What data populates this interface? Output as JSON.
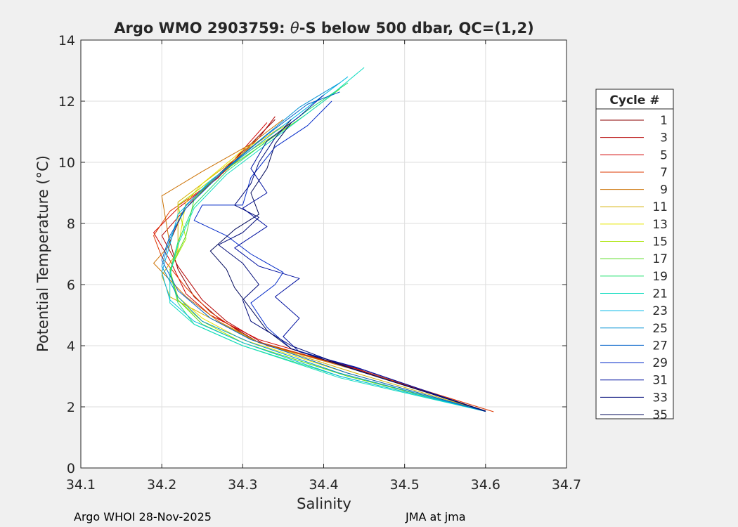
{
  "chart_data": {
    "type": "line",
    "title_prefix": "Argo WMO 2903759: ",
    "title_symbol": "θ",
    "title_suffix": "-S below 500 dbar,  QC=(1,2)",
    "xlabel": "Salinity",
    "ylabel": "Potential Temperature (°C)",
    "xlim": [
      34.1,
      34.7
    ],
    "ylim": [
      0,
      14
    ],
    "xticks": [
      "34.1",
      "34.2",
      "34.3",
      "34.4",
      "34.5",
      "34.6",
      "34.7"
    ],
    "yticks": [
      "0",
      "2",
      "4",
      "6",
      "8",
      "10",
      "12",
      "14"
    ],
    "grid": true,
    "legend": {
      "title": "Cycle #",
      "placement": "right",
      "entries": [
        {
          "label": "1",
          "color": "#8b0000"
        },
        {
          "label": "3",
          "color": "#b40000"
        },
        {
          "label": "5",
          "color": "#d10000"
        },
        {
          "label": "7",
          "color": "#de3800"
        },
        {
          "label": "9",
          "color": "#cc7000"
        },
        {
          "label": "11",
          "color": "#d4b000"
        },
        {
          "label": "13",
          "color": "#e8e600"
        },
        {
          "label": "15",
          "color": "#a8e400"
        },
        {
          "label": "17",
          "color": "#5cdc28"
        },
        {
          "label": "19",
          "color": "#28e070"
        },
        {
          "label": "21",
          "color": "#10dcc0"
        },
        {
          "label": "23",
          "color": "#00b8e6"
        },
        {
          "label": "25",
          "color": "#0090d4"
        },
        {
          "label": "27",
          "color": "#0060c8"
        },
        {
          "label": "29",
          "color": "#0028c8"
        },
        {
          "label": "31",
          "color": "#0010a0"
        },
        {
          "label": "33",
          "color": "#000a78"
        },
        {
          "label": "35",
          "color": "#00085a"
        }
      ]
    },
    "series": [
      {
        "name": "1",
        "points": [
          [
            34.6,
            1.86
          ],
          [
            34.45,
            3.2
          ],
          [
            34.32,
            4.1
          ],
          [
            34.27,
            4.9
          ],
          [
            34.24,
            5.6
          ],
          [
            34.22,
            6.5
          ],
          [
            34.21,
            7.4
          ],
          [
            34.23,
            8.6
          ],
          [
            34.27,
            9.6
          ],
          [
            34.31,
            10.6
          ],
          [
            34.34,
            11.4
          ]
        ]
      },
      {
        "name": "3",
        "points": [
          [
            34.6,
            1.85
          ],
          [
            34.44,
            3.25
          ],
          [
            34.33,
            4.0
          ],
          [
            34.28,
            4.8
          ],
          [
            34.25,
            5.5
          ],
          [
            34.22,
            6.6
          ],
          [
            34.2,
            7.6
          ],
          [
            34.24,
            8.8
          ],
          [
            34.28,
            9.8
          ],
          [
            34.32,
            10.8
          ],
          [
            34.34,
            11.5
          ]
        ]
      },
      {
        "name": "5",
        "points": [
          [
            34.6,
            1.86
          ],
          [
            34.45,
            3.2
          ],
          [
            34.32,
            4.2
          ],
          [
            34.26,
            5.0
          ],
          [
            34.23,
            5.7
          ],
          [
            34.21,
            6.8
          ],
          [
            34.19,
            7.7
          ],
          [
            34.22,
            8.5
          ],
          [
            34.27,
            9.5
          ],
          [
            34.3,
            10.4
          ],
          [
            34.33,
            11.3
          ]
        ]
      },
      {
        "name": "7",
        "points": [
          [
            34.61,
            1.84
          ],
          [
            34.45,
            3.15
          ],
          [
            34.31,
            4.2
          ],
          [
            34.26,
            5.1
          ],
          [
            34.23,
            5.9
          ],
          [
            34.2,
            6.9
          ],
          [
            34.19,
            7.6
          ],
          [
            34.21,
            8.4
          ],
          [
            34.26,
            9.3
          ],
          [
            34.3,
            10.2
          ],
          [
            34.35,
            11.2
          ]
        ]
      },
      {
        "name": "9",
        "points": [
          [
            34.6,
            1.87
          ],
          [
            34.44,
            3.2
          ],
          [
            34.32,
            4.1
          ],
          [
            34.27,
            4.8
          ],
          [
            34.23,
            5.6
          ],
          [
            34.19,
            6.7
          ],
          [
            34.21,
            7.3
          ],
          [
            34.2,
            8.9
          ],
          [
            34.25,
            9.7
          ],
          [
            34.31,
            10.6
          ],
          [
            34.35,
            11.4
          ]
        ]
      },
      {
        "name": "11",
        "points": [
          [
            34.6,
            1.86
          ],
          [
            34.44,
            3.1
          ],
          [
            34.32,
            4.1
          ],
          [
            34.26,
            4.9
          ],
          [
            34.21,
            5.6
          ],
          [
            34.2,
            6.3
          ],
          [
            34.22,
            7.1
          ],
          [
            34.22,
            8.7
          ],
          [
            34.26,
            9.5
          ],
          [
            34.31,
            10.5
          ],
          [
            34.35,
            11.2
          ]
        ]
      },
      {
        "name": "13",
        "points": [
          [
            34.6,
            1.85
          ],
          [
            34.43,
            3.1
          ],
          [
            34.3,
            4.2
          ],
          [
            34.25,
            4.9
          ],
          [
            34.22,
            5.6
          ],
          [
            34.21,
            6.4
          ],
          [
            34.22,
            7.2
          ],
          [
            34.23,
            8.7
          ],
          [
            34.25,
            9.3
          ],
          [
            34.3,
            10.4
          ],
          [
            34.36,
            11.3
          ]
        ]
      },
      {
        "name": "15",
        "points": [
          [
            34.6,
            1.85
          ],
          [
            34.43,
            3.0
          ],
          [
            34.3,
            4.1
          ],
          [
            34.25,
            4.8
          ],
          [
            34.22,
            5.5
          ],
          [
            34.21,
            6.5
          ],
          [
            34.23,
            7.5
          ],
          [
            34.22,
            8.6
          ],
          [
            34.26,
            9.4
          ],
          [
            34.31,
            10.4
          ],
          [
            34.37,
            11.4
          ]
        ]
      },
      {
        "name": "17",
        "points": [
          [
            34.6,
            1.86
          ],
          [
            34.43,
            3.0
          ],
          [
            34.3,
            4.1
          ],
          [
            34.25,
            4.7
          ],
          [
            34.22,
            5.5
          ],
          [
            34.21,
            6.5
          ],
          [
            34.23,
            7.6
          ],
          [
            34.24,
            8.8
          ],
          [
            34.27,
            9.6
          ],
          [
            34.32,
            10.5
          ],
          [
            34.38,
            11.6
          ],
          [
            34.42,
            12.4
          ]
        ]
      },
      {
        "name": "19",
        "points": [
          [
            34.6,
            1.85
          ],
          [
            34.42,
            3.0
          ],
          [
            34.3,
            4.0
          ],
          [
            34.24,
            4.7
          ],
          [
            34.22,
            5.4
          ],
          [
            34.21,
            6.4
          ],
          [
            34.22,
            7.4
          ],
          [
            34.24,
            8.6
          ],
          [
            34.28,
            9.7
          ],
          [
            34.33,
            10.7
          ],
          [
            34.38,
            11.7
          ],
          [
            34.43,
            12.6
          ]
        ]
      },
      {
        "name": "21",
        "points": [
          [
            34.6,
            1.85
          ],
          [
            34.42,
            2.95
          ],
          [
            34.3,
            4.0
          ],
          [
            34.24,
            4.7
          ],
          [
            34.21,
            5.4
          ],
          [
            34.21,
            6.3
          ],
          [
            34.22,
            7.3
          ],
          [
            34.24,
            8.5
          ],
          [
            34.28,
            9.6
          ],
          [
            34.34,
            10.8
          ],
          [
            34.4,
            12.0
          ],
          [
            34.45,
            13.1
          ]
        ]
      },
      {
        "name": "23",
        "points": [
          [
            34.6,
            1.86
          ],
          [
            34.42,
            3.0
          ],
          [
            34.3,
            4.1
          ],
          [
            34.24,
            4.8
          ],
          [
            34.21,
            5.5
          ],
          [
            34.2,
            6.4
          ],
          [
            34.21,
            7.3
          ],
          [
            34.22,
            8.3
          ],
          [
            34.26,
            9.4
          ],
          [
            34.32,
            10.6
          ],
          [
            34.38,
            11.8
          ],
          [
            34.43,
            12.8
          ]
        ]
      },
      {
        "name": "25",
        "points": [
          [
            34.6,
            1.85
          ],
          [
            34.42,
            3.1
          ],
          [
            34.31,
            4.1
          ],
          [
            34.25,
            4.8
          ],
          [
            34.22,
            5.6
          ],
          [
            34.2,
            6.6
          ],
          [
            34.21,
            7.5
          ],
          [
            34.23,
            8.6
          ],
          [
            34.27,
            9.6
          ],
          [
            34.32,
            10.7
          ],
          [
            34.37,
            11.8
          ],
          [
            34.42,
            12.6
          ]
        ]
      },
      {
        "name": "27",
        "points": [
          [
            34.6,
            1.85
          ],
          [
            34.43,
            3.1
          ],
          [
            34.31,
            4.2
          ],
          [
            34.26,
            4.9
          ],
          [
            34.22,
            5.8
          ],
          [
            34.2,
            6.8
          ],
          [
            34.21,
            7.6
          ],
          [
            34.23,
            8.5
          ],
          [
            34.28,
            9.8
          ],
          [
            34.33,
            10.9
          ],
          [
            34.38,
            11.9
          ],
          [
            34.42,
            12.3
          ]
        ]
      },
      {
        "name": "29",
        "points": [
          [
            34.6,
            1.86
          ],
          [
            34.45,
            3.2
          ],
          [
            34.36,
            3.9
          ],
          [
            34.33,
            4.6
          ],
          [
            34.31,
            5.4
          ],
          [
            34.34,
            6.0
          ],
          [
            34.35,
            6.4
          ],
          [
            34.31,
            7.0
          ],
          [
            34.28,
            7.6
          ],
          [
            34.24,
            8.1
          ],
          [
            34.25,
            8.6
          ],
          [
            34.3,
            8.6
          ],
          [
            34.31,
            9.5
          ],
          [
            34.34,
            10.5
          ],
          [
            34.38,
            11.2
          ],
          [
            34.41,
            12.0
          ]
        ]
      },
      {
        "name": "31",
        "points": [
          [
            34.6,
            1.85
          ],
          [
            34.44,
            3.3
          ],
          [
            34.37,
            3.8
          ],
          [
            34.35,
            4.3
          ],
          [
            34.37,
            4.9
          ],
          [
            34.34,
            5.6
          ],
          [
            34.37,
            6.2
          ],
          [
            34.32,
            6.6
          ],
          [
            34.29,
            7.2
          ],
          [
            34.33,
            7.9
          ],
          [
            34.3,
            8.5
          ],
          [
            34.33,
            9.0
          ],
          [
            34.31,
            9.8
          ],
          [
            34.33,
            10.7
          ],
          [
            34.37,
            11.5
          ],
          [
            34.4,
            12.2
          ]
        ]
      },
      {
        "name": "33",
        "points": [
          [
            34.6,
            1.86
          ],
          [
            34.43,
            3.3
          ],
          [
            34.36,
            4.0
          ],
          [
            34.31,
            4.8
          ],
          [
            34.3,
            5.5
          ],
          [
            34.32,
            6.0
          ],
          [
            34.3,
            6.7
          ],
          [
            34.27,
            7.3
          ],
          [
            34.3,
            7.7
          ],
          [
            34.32,
            8.2
          ],
          [
            34.29,
            8.6
          ],
          [
            34.31,
            9.3
          ],
          [
            34.32,
            10.0
          ],
          [
            34.34,
            10.8
          ],
          [
            34.36,
            11.4
          ]
        ]
      },
      {
        "name": "35",
        "points": [
          [
            34.6,
            1.87
          ],
          [
            34.44,
            3.2
          ],
          [
            34.36,
            3.9
          ],
          [
            34.33,
            4.5
          ],
          [
            34.31,
            5.2
          ],
          [
            34.29,
            5.9
          ],
          [
            34.28,
            6.5
          ],
          [
            34.26,
            7.1
          ],
          [
            34.29,
            7.8
          ],
          [
            34.32,
            8.3
          ],
          [
            34.31,
            9.0
          ],
          [
            34.33,
            9.8
          ],
          [
            34.34,
            10.6
          ],
          [
            34.36,
            11.3
          ]
        ]
      }
    ]
  },
  "footer": {
    "left": "Argo WHOI 28-Nov-2025",
    "right": "JMA at jma"
  }
}
